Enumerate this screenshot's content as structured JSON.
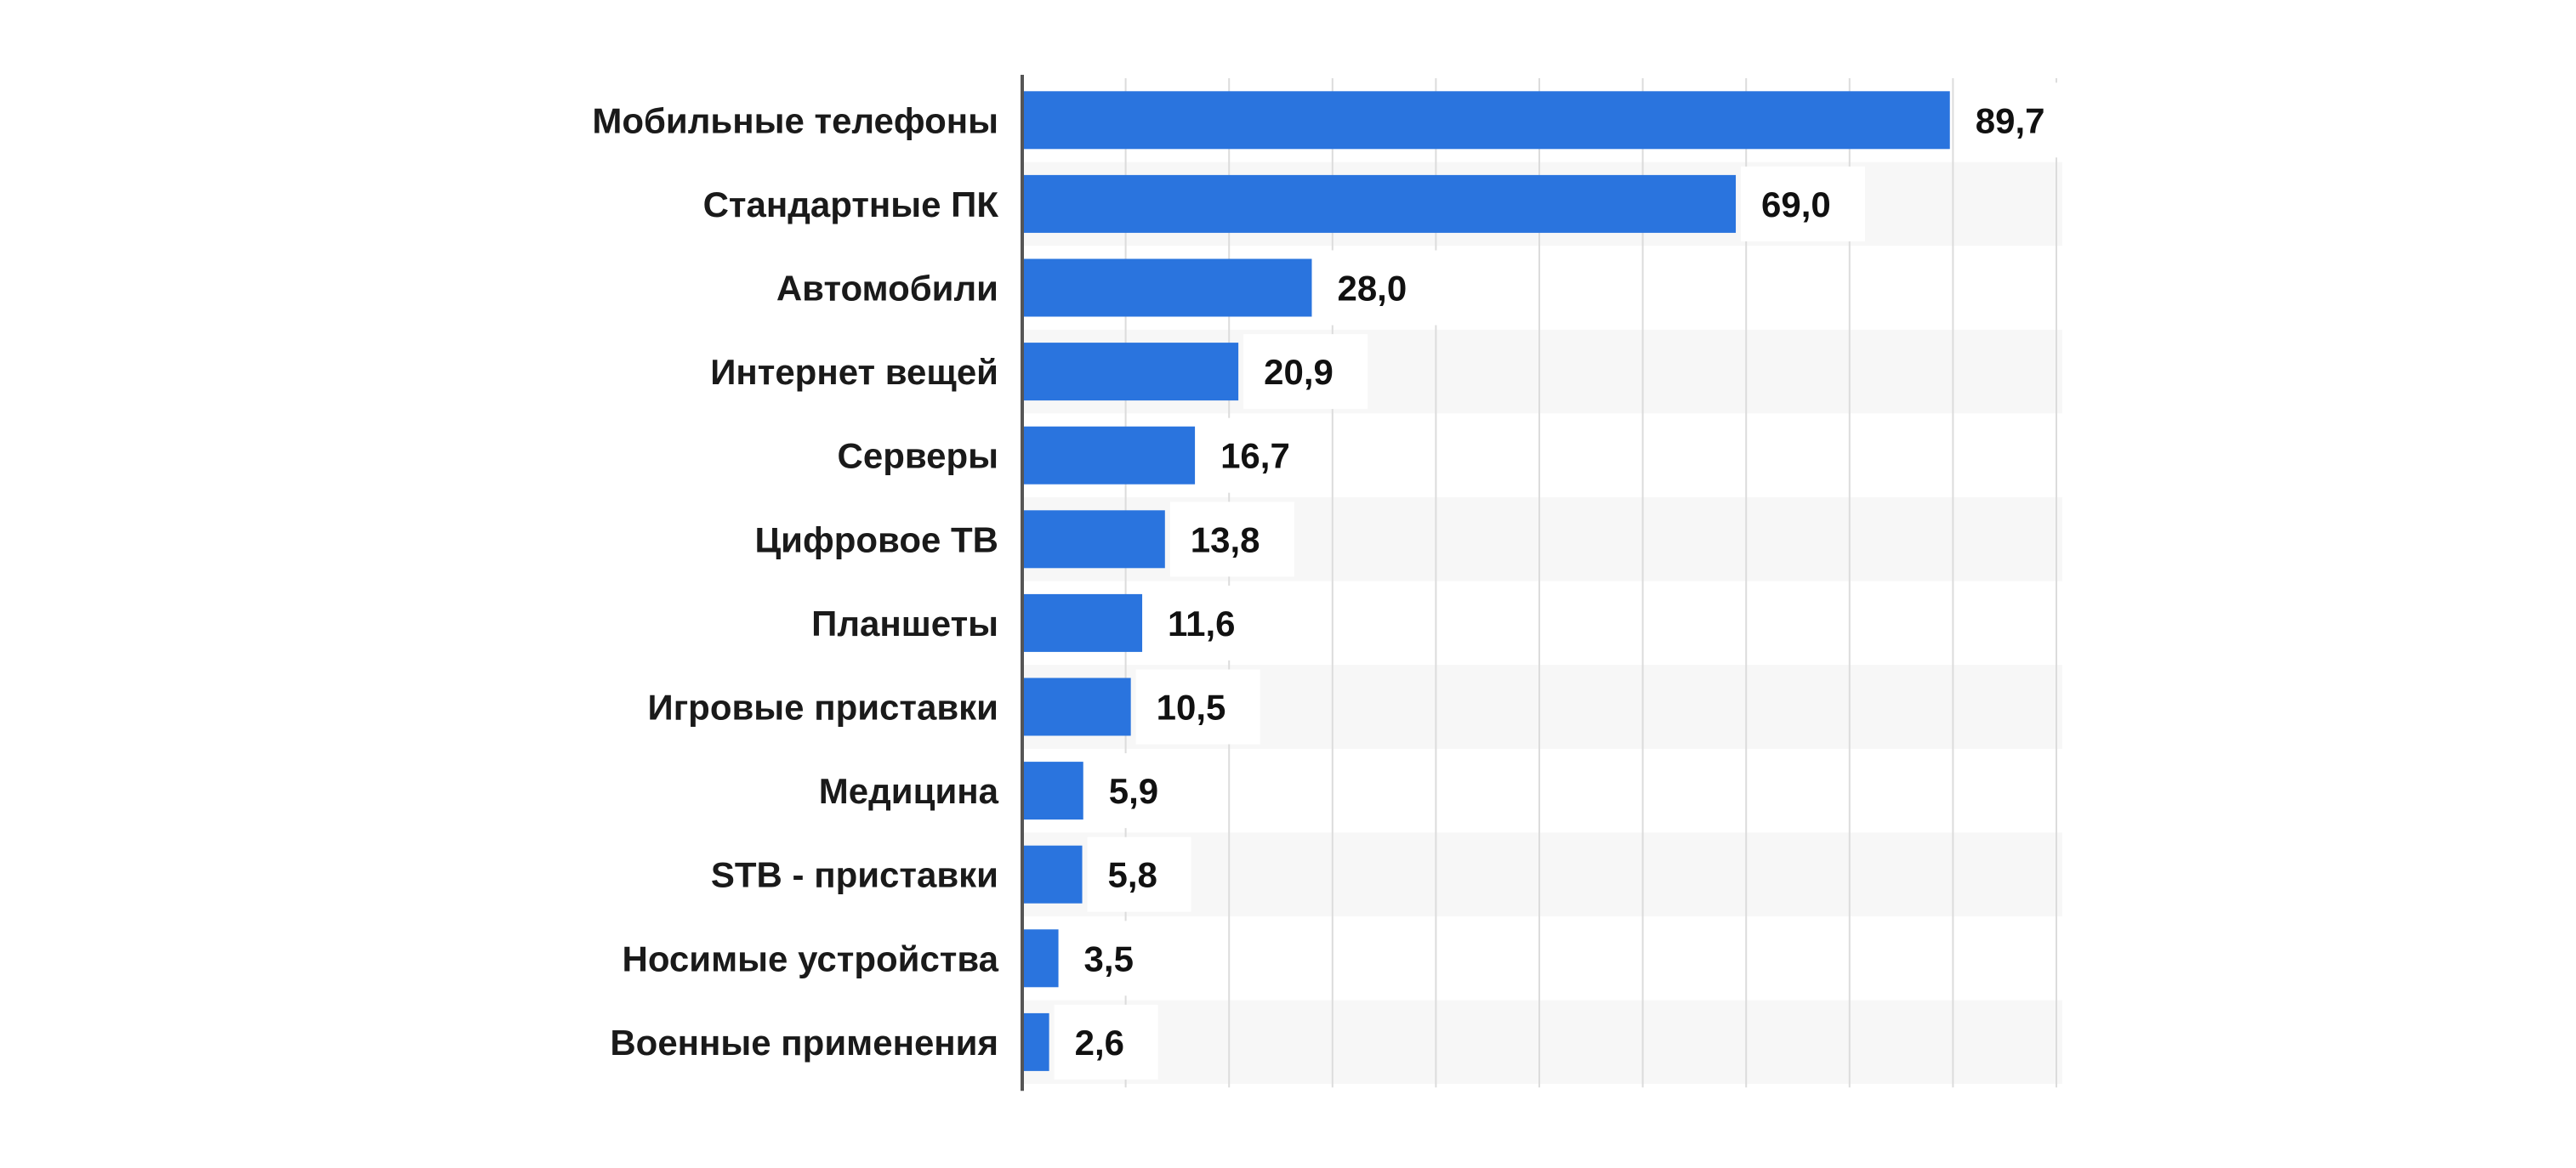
{
  "chart_data": {
    "type": "bar",
    "orientation": "horizontal",
    "categories": [
      "Мобильные телефоны",
      "Стандартные ПК",
      "Автомобили",
      "Интернет вещей",
      "Серверы",
      "Цифровое ТВ",
      "Планшеты",
      "Игровые приставки",
      "Медицина",
      "STB - приставки",
      "Носимые устройства",
      "Военные применения"
    ],
    "values": [
      89.7,
      69.0,
      28.0,
      20.9,
      16.7,
      13.8,
      11.6,
      10.5,
      5.9,
      5.8,
      3.5,
      2.6
    ],
    "value_labels": [
      "89,7",
      "69,0",
      "28,0",
      "20,9",
      "16,7",
      "13,8",
      "11,6",
      "10,5",
      "5,9",
      "5,8",
      "3,5",
      "2,6"
    ],
    "title": "",
    "xlabel": "",
    "ylabel": "",
    "xlim": [
      0,
      100
    ],
    "grid": true,
    "legend": "none",
    "colors": {
      "bar": "#2a74de",
      "row_band": "#f7f7f7",
      "grid": "#dcdcdc",
      "axis": "#555555",
      "label_bg": "#ffffff"
    }
  }
}
